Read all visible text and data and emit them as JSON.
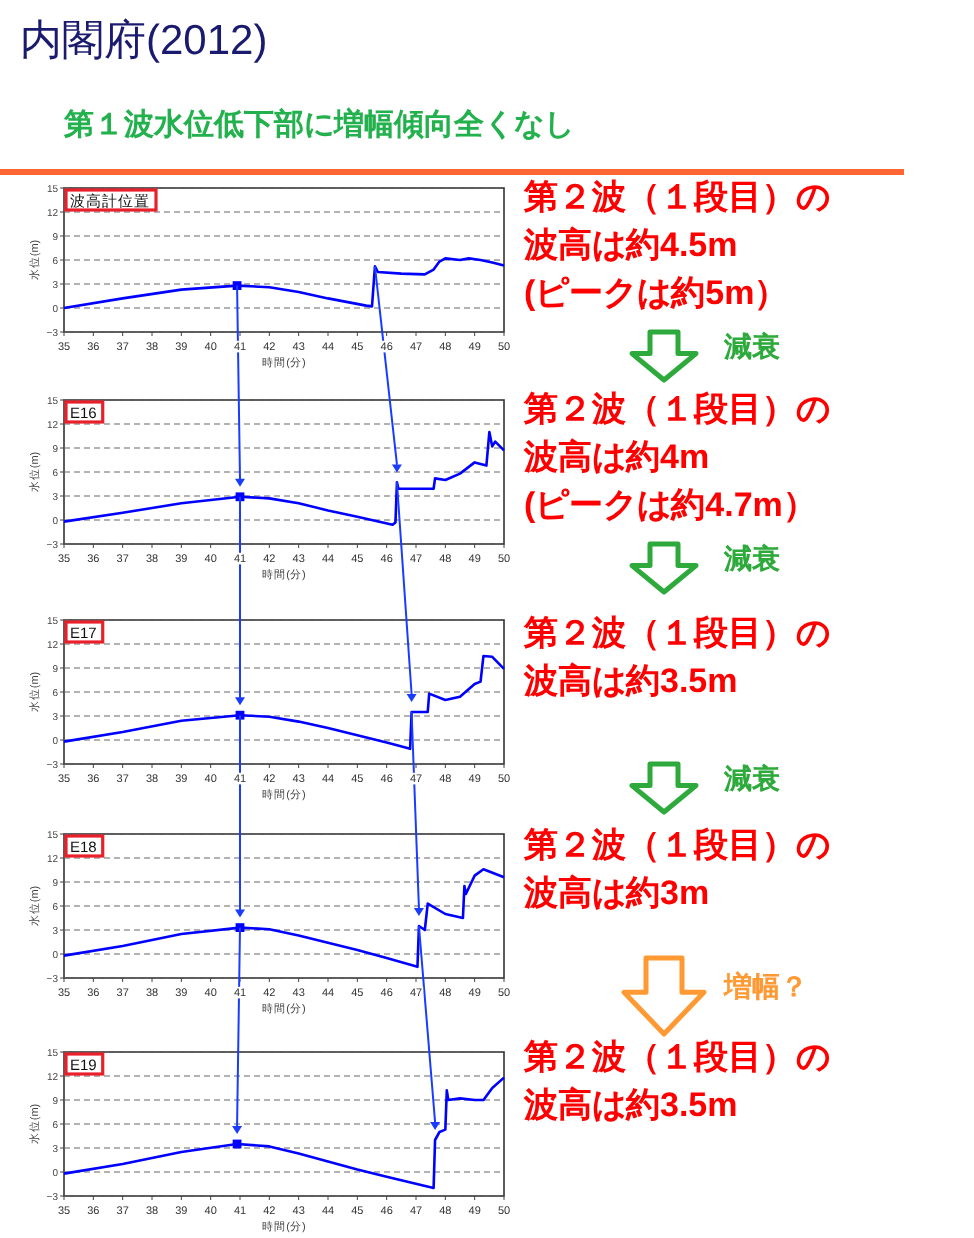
{
  "chart_data": [
    {
      "type": "line",
      "title": "内閣府(2012)",
      "subtitle": "第１波水位低下部に増幅傾向全くなし",
      "xlabel": "時間(分)",
      "ylabel": "水位(m)",
      "xlim": [
        35,
        50
      ],
      "ylim": [
        -3,
        15
      ],
      "xticks": [
        35,
        36,
        37,
        38,
        39,
        40,
        41,
        42,
        43,
        44,
        45,
        46,
        47,
        48,
        49,
        50
      ],
      "yticks": [
        -3,
        0,
        3,
        6,
        9,
        12,
        15
      ],
      "grid": "y",
      "annotations": [
        "波高計位置",
        "第２波（１段目）の",
        "波高は約4.5m",
        "(ピークは約5m）"
      ],
      "series": [
        {
          "type": "line",
          "color": "#0000ff",
          "x": [
            35,
            37,
            39,
            40.9,
            42,
            43,
            44,
            45.3,
            45.5,
            45.6,
            45.7,
            46.5,
            47.3,
            47.6,
            47.8,
            48,
            48.5,
            48.8,
            49.2,
            49.6,
            50
          ],
          "values": [
            0,
            1.2,
            2.3,
            2.8,
            2.6,
            2.0,
            1.2,
            0.3,
            0.2,
            5.2,
            4.5,
            4.3,
            4.2,
            4.8,
            5.8,
            6.2,
            6.0,
            6.2,
            6.0,
            5.7,
            5.3
          ]
        },
        {
          "type": "scatter",
          "marker": "square",
          "color": "#0000ff",
          "x": [
            40.9
          ],
          "values": [
            2.8
          ]
        }
      ]
    },
    {
      "type": "line",
      "xlabel": "時間(分)",
      "ylabel": "水位(m)",
      "xlim": [
        35,
        50
      ],
      "ylim": [
        -3,
        15
      ],
      "xticks": [
        35,
        36,
        37,
        38,
        39,
        40,
        41,
        42,
        43,
        44,
        45,
        46,
        47,
        48,
        49,
        50
      ],
      "yticks": [
        -3,
        0,
        3,
        6,
        9,
        12,
        15
      ],
      "grid": "y",
      "annotations": [
        "E16",
        "減衰",
        "第２波（１段目）の",
        "波高は約4m",
        "(ピークは約4.7m）"
      ],
      "series": [
        {
          "type": "line",
          "color": "#0000ff",
          "x": [
            35,
            37,
            39,
            41,
            42,
            43,
            44,
            45,
            46.2,
            46.3,
            46.35,
            46.4,
            47.6,
            47.65,
            48,
            48.5,
            49,
            49.4,
            49.5,
            49.6,
            49.7,
            50
          ],
          "values": [
            -0.2,
            0.9,
            2.1,
            2.9,
            2.7,
            2.1,
            1.2,
            0.4,
            -0.6,
            -0.3,
            4.7,
            3.9,
            3.9,
            5.2,
            5.0,
            5.8,
            7.2,
            6.8,
            11.0,
            9.2,
            9.8,
            8.7
          ]
        },
        {
          "type": "scatter",
          "marker": "square",
          "color": "#0000ff",
          "x": [
            41
          ],
          "values": [
            2.9
          ]
        }
      ]
    },
    {
      "type": "line",
      "xlabel": "時間(分)",
      "ylabel": "水位(m)",
      "xlim": [
        35,
        50
      ],
      "ylim": [
        -3,
        15
      ],
      "xticks": [
        35,
        36,
        37,
        38,
        39,
        40,
        41,
        42,
        43,
        44,
        45,
        46,
        47,
        48,
        49,
        50
      ],
      "yticks": [
        -3,
        0,
        3,
        6,
        9,
        12,
        15
      ],
      "grid": "y",
      "annotations": [
        "E17",
        "減衰",
        "第２波（１段目）の",
        "波高は約3.5m"
      ],
      "series": [
        {
          "type": "line",
          "color": "#0000ff",
          "x": [
            35,
            37,
            39,
            41,
            42,
            43,
            44,
            45,
            46,
            46.8,
            46.85,
            47.4,
            47.45,
            48,
            48.5,
            49,
            49.2,
            49.3,
            49.6,
            50
          ],
          "values": [
            -0.2,
            1.0,
            2.4,
            3.1,
            2.9,
            2.3,
            1.5,
            0.6,
            -0.3,
            -1.1,
            3.5,
            3.5,
            5.8,
            5.0,
            5.4,
            7.0,
            7.3,
            10.5,
            10.4,
            8.9
          ]
        },
        {
          "type": "scatter",
          "marker": "square",
          "color": "#0000ff",
          "x": [
            41
          ],
          "values": [
            3.1
          ]
        }
      ]
    },
    {
      "type": "line",
      "xlabel": "時間(分)",
      "ylabel": "水位(m)",
      "xlim": [
        35,
        50
      ],
      "ylim": [
        -3,
        15
      ],
      "xticks": [
        35,
        36,
        37,
        38,
        39,
        40,
        41,
        42,
        43,
        44,
        45,
        46,
        47,
        48,
        49,
        50
      ],
      "yticks": [
        -3,
        0,
        3,
        6,
        9,
        12,
        15
      ],
      "grid": "y",
      "annotations": [
        "E18",
        "減衰",
        "第２波（１段目）の",
        "波高は約3m"
      ],
      "series": [
        {
          "type": "line",
          "color": "#0000ff",
          "x": [
            35,
            37,
            39,
            41,
            42,
            43,
            44,
            45,
            46,
            47.05,
            47.1,
            47.3,
            47.4,
            48,
            48.6,
            48.65,
            48.7,
            49,
            49.3,
            50
          ],
          "values": [
            -0.2,
            1.0,
            2.5,
            3.3,
            3.1,
            2.3,
            1.4,
            0.5,
            -0.5,
            -1.6,
            3.5,
            3.0,
            6.3,
            5.0,
            4.5,
            8.5,
            7.5,
            9.8,
            10.6,
            9.6
          ]
        },
        {
          "type": "scatter",
          "marker": "square",
          "color": "#0000ff",
          "x": [
            41
          ],
          "values": [
            3.3
          ]
        }
      ]
    },
    {
      "type": "line",
      "xlabel": "時間(分)",
      "ylabel": "水位(m)",
      "xlim": [
        35,
        50
      ],
      "ylim": [
        -3,
        15
      ],
      "xticks": [
        35,
        36,
        37,
        38,
        39,
        40,
        41,
        42,
        43,
        44,
        45,
        46,
        47,
        48,
        49,
        50
      ],
      "yticks": [
        -3,
        0,
        3,
        6,
        9,
        12,
        15
      ],
      "grid": "y",
      "annotations": [
        "E19",
        "増幅？",
        "第２波（１段目）の",
        "波高は約3.5m"
      ],
      "series": [
        {
          "type": "line",
          "color": "#0000ff",
          "x": [
            35,
            37,
            39,
            40.9,
            42,
            43,
            44,
            45,
            46,
            47.6,
            47.65,
            47.8,
            48,
            48.05,
            48.1,
            48.5,
            49,
            49.3,
            49.6,
            50
          ],
          "values": [
            -0.2,
            1.0,
            2.5,
            3.5,
            3.2,
            2.3,
            1.3,
            0.3,
            -0.6,
            -2.0,
            4.0,
            5.0,
            5.3,
            10.2,
            9.0,
            9.2,
            9.0,
            9.0,
            10.5,
            11.8
          ]
        },
        {
          "type": "scatter",
          "marker": "square",
          "color": "#0000ff",
          "x": [
            40.9
          ],
          "values": [
            3.5
          ]
        }
      ]
    }
  ]
}
